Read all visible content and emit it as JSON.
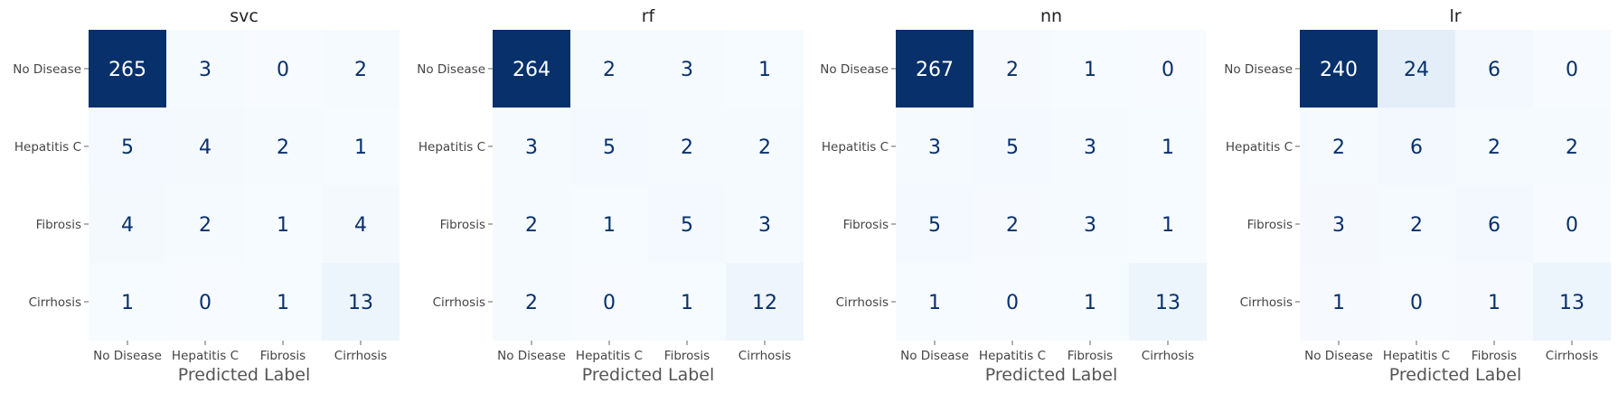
{
  "chart_data": [
    {
      "type": "heatmap",
      "title": "svc",
      "xlabel": "Predicted Label",
      "ylabel": "",
      "x_categories": [
        "No Disease",
        "Hepatitis C",
        "Fibrosis",
        "Cirrhosis"
      ],
      "y_categories": [
        "No Disease",
        "Hepatitis C",
        "Fibrosis",
        "Cirrhosis"
      ],
      "values": [
        [
          265,
          3,
          0,
          2
        ],
        [
          5,
          4,
          2,
          1
        ],
        [
          4,
          2,
          1,
          4
        ],
        [
          1,
          0,
          1,
          13
        ]
      ],
      "colormap": "Blues"
    },
    {
      "type": "heatmap",
      "title": "rf",
      "xlabel": "Predicted Label",
      "ylabel": "",
      "x_categories": [
        "No Disease",
        "Hepatitis C",
        "Fibrosis",
        "Cirrhosis"
      ],
      "y_categories": [
        "No Disease",
        "Hepatitis C",
        "Fibrosis",
        "Cirrhosis"
      ],
      "values": [
        [
          264,
          2,
          3,
          1
        ],
        [
          3,
          5,
          2,
          2
        ],
        [
          2,
          1,
          5,
          3
        ],
        [
          2,
          0,
          1,
          12
        ]
      ],
      "colormap": "Blues"
    },
    {
      "type": "heatmap",
      "title": "nn",
      "xlabel": "Predicted Label",
      "ylabel": "",
      "x_categories": [
        "No Disease",
        "Hepatitis C",
        "Fibrosis",
        "Cirrhosis"
      ],
      "y_categories": [
        "No Disease",
        "Hepatitis C",
        "Fibrosis",
        "Cirrhosis"
      ],
      "values": [
        [
          267,
          2,
          1,
          0
        ],
        [
          3,
          5,
          3,
          1
        ],
        [
          5,
          2,
          3,
          1
        ],
        [
          1,
          0,
          1,
          13
        ]
      ],
      "colormap": "Blues"
    },
    {
      "type": "heatmap",
      "title": "lr",
      "xlabel": "Predicted Label",
      "ylabel": "",
      "x_categories": [
        "No Disease",
        "Hepatitis C",
        "Fibrosis",
        "Cirrhosis"
      ],
      "y_categories": [
        "No Disease",
        "Hepatitis C",
        "Fibrosis",
        "Cirrhosis"
      ],
      "values": [
        [
          240,
          24,
          6,
          0
        ],
        [
          2,
          6,
          2,
          2
        ],
        [
          3,
          2,
          6,
          0
        ],
        [
          1,
          0,
          1,
          13
        ]
      ],
      "colormap": "Blues"
    }
  ],
  "colors": {
    "text_dark": "#08306b",
    "text_light": "#ffffff",
    "tick": "#444444",
    "label": "#555555",
    "title": "#222222"
  }
}
